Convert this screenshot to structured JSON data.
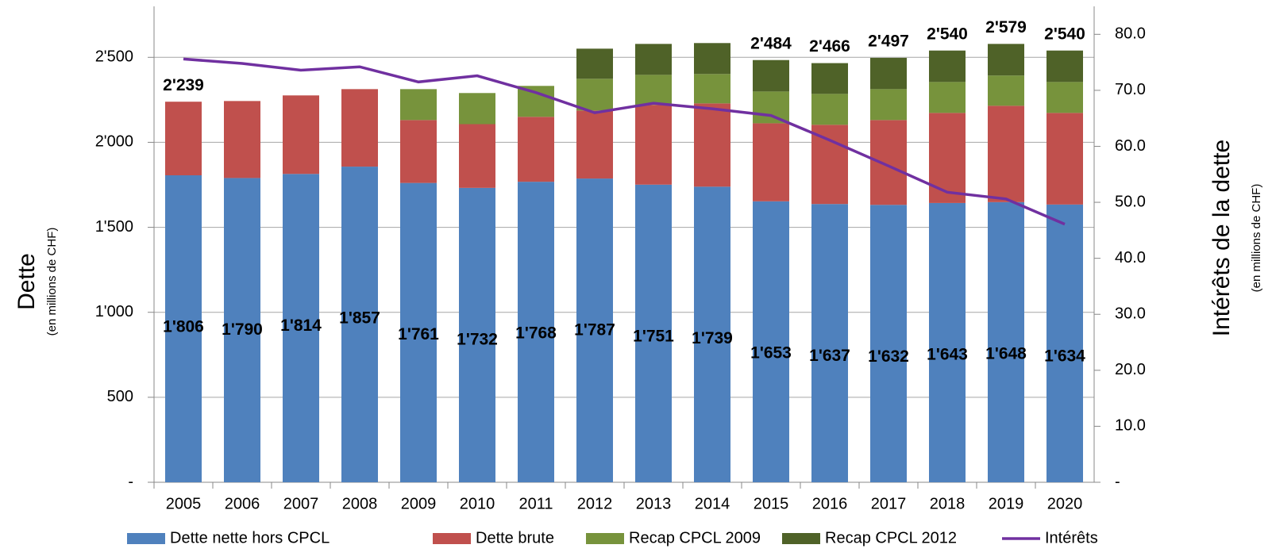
{
  "chart_data": {
    "type": "bar",
    "stacked": true,
    "y_label": "Dette",
    "y_sublabel": "(en millions de CHF)",
    "y2_label": "Intérêts de la dette",
    "y2_sublabel": "(en millions de CHF)",
    "categories": [
      "2005",
      "2006",
      "2007",
      "2008",
      "2009",
      "2010",
      "2011",
      "2012",
      "2013",
      "2014",
      "2015",
      "2016",
      "2017",
      "2018",
      "2019",
      "2020"
    ],
    "series": [
      {
        "name": "Dette nette hors CPCL",
        "color": "#4f81bd",
        "values": [
          1806,
          1790,
          1814,
          1857,
          1761,
          1732,
          1768,
          1787,
          1751,
          1739,
          1653,
          1637,
          1632,
          1643,
          1648,
          1634
        ],
        "value_labels": [
          "1'806",
          "1'790",
          "1'814",
          "1'857",
          "1'761",
          "1'732",
          "1'768",
          "1'787",
          "1'751",
          "1'739",
          "1'653",
          "1'637",
          "1'632",
          "1'643",
          "1'648",
          "1'634"
        ]
      },
      {
        "name": "Dette brute",
        "color": "#c0504d",
        "values": [
          433,
          453,
          462,
          456,
          370,
          375,
          382,
          400,
          469,
          490,
          459,
          466,
          499,
          530,
          567,
          539
        ]
      },
      {
        "name": "Recap CPCL 2009",
        "color": "#77933c",
        "values": [
          null,
          null,
          null,
          null,
          182,
          183,
          182,
          187,
          177,
          173,
          187,
          182,
          182,
          182,
          178,
          182
        ]
      },
      {
        "name": "Recap CPCL 2012",
        "color": "#4f6228",
        "values": [
          null,
          null,
          null,
          null,
          null,
          null,
          null,
          177,
          182,
          182,
          185,
          181,
          184,
          185,
          186,
          185
        ]
      },
      {
        "name": "Intérêts",
        "type": "line",
        "axis": "y2",
        "color": "#7030a0",
        "values": [
          75.6,
          74.8,
          73.6,
          74.2,
          71.5,
          72.6,
          69.6,
          66.0,
          67.7,
          66.7,
          65.5,
          61.1,
          56.5,
          51.8,
          50.6,
          46.1
        ]
      }
    ],
    "totals": [
      2239,
      null,
      null,
      null,
      null,
      null,
      null,
      null,
      null,
      null,
      2484,
      2466,
      2497,
      2540,
      2579,
      2540
    ],
    "total_labels": [
      "2'239",
      null,
      null,
      null,
      null,
      null,
      null,
      null,
      null,
      null,
      "2'484",
      "2'466",
      "2'497",
      "2'540",
      "2'579",
      "2'540"
    ],
    "ylim": [
      0,
      2800
    ],
    "yticks": [
      {
        "value": 0,
        "label": "-"
      },
      500,
      {
        "value": 1000,
        "label": "1'000"
      },
      {
        "value": 1500,
        "label": "1'500"
      },
      {
        "value": 2000,
        "label": "2'000"
      },
      {
        "value": 2500,
        "label": "2'500"
      }
    ],
    "y2lim": [
      0,
      85
    ],
    "y2ticks": [
      {
        "value": 0,
        "label": "-"
      },
      {
        "value": 10,
        "label": "10.0"
      },
      {
        "value": 20,
        "label": "20.0"
      },
      {
        "value": 30,
        "label": "30.0"
      },
      {
        "value": 40,
        "label": "40.0"
      },
      {
        "value": 50,
        "label": "50.0"
      },
      {
        "value": 60,
        "label": "60.0"
      },
      {
        "value": 70,
        "label": "70.0"
      },
      {
        "value": 80,
        "label": "80.0"
      }
    ],
    "grid": true,
    "legend": "bottom"
  }
}
